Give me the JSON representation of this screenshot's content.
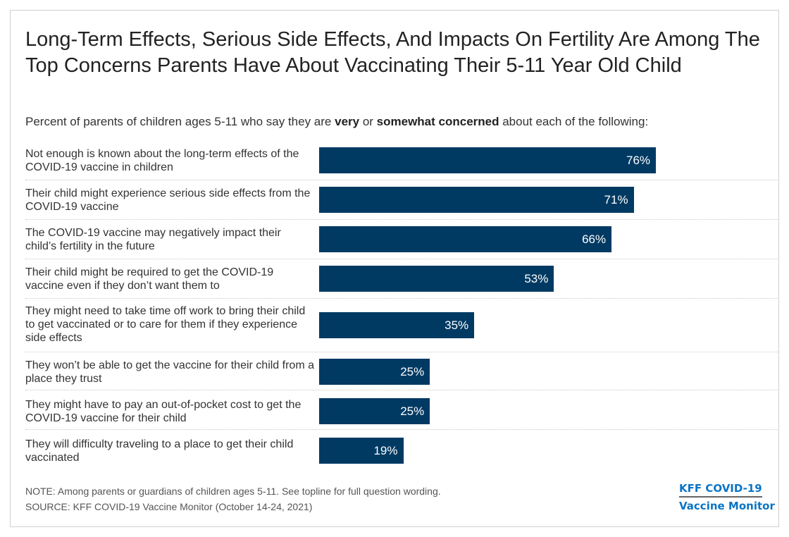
{
  "title": "Long-Term Effects, Serious Side Effects, And Impacts On Fertility Are Among The Top Concerns Parents Have About Vaccinating Their 5-11 Year Old Child",
  "subtitle": {
    "pre": "Percent of parents of children ages 5-11 who say they are ",
    "b1": "very",
    "mid": " or ",
    "b2": "somewhat concerned",
    "post": " about each of the following:"
  },
  "chart_data": {
    "type": "bar",
    "orientation": "horizontal",
    "categories": [
      "Not enough is known about the long-term effects of the COVID-19 vaccine in children",
      "Their child might experience serious side effects from the COVID-19 vaccine",
      "The COVID-19 vaccine may negatively impact their child’s fertility in the future",
      "Their child might be required to get the COVID-19 vaccine even if they don’t want them to",
      "They might need to take time off work to bring their child to get vaccinated or to care for them if they experience side effects",
      "They won’t be able to get the vaccine for their child from a place they trust",
      "They might have to pay an out-of-pocket cost to get the COVID-19 vaccine for their child",
      "They will difficulty traveling to a place to get their child vaccinated"
    ],
    "values": [
      76,
      71,
      66,
      53,
      35,
      25,
      25,
      19
    ],
    "value_labels": [
      "76%",
      "71%",
      "66%",
      "53%",
      "35%",
      "25%",
      "25%",
      "19%"
    ],
    "xlim": [
      0,
      100
    ],
    "bar_color": "#003a63",
    "grid": false
  },
  "note": "NOTE: Among parents or guardians of children ages 5-11. See topline for full question wording.",
  "source": "SOURCE: KFF COVID-19 Vaccine Monitor (October 14-24, 2021)",
  "logo": {
    "line1": "KFF COVID-19",
    "line2": "Vaccine Monitor",
    "color": "#0b74c4"
  }
}
